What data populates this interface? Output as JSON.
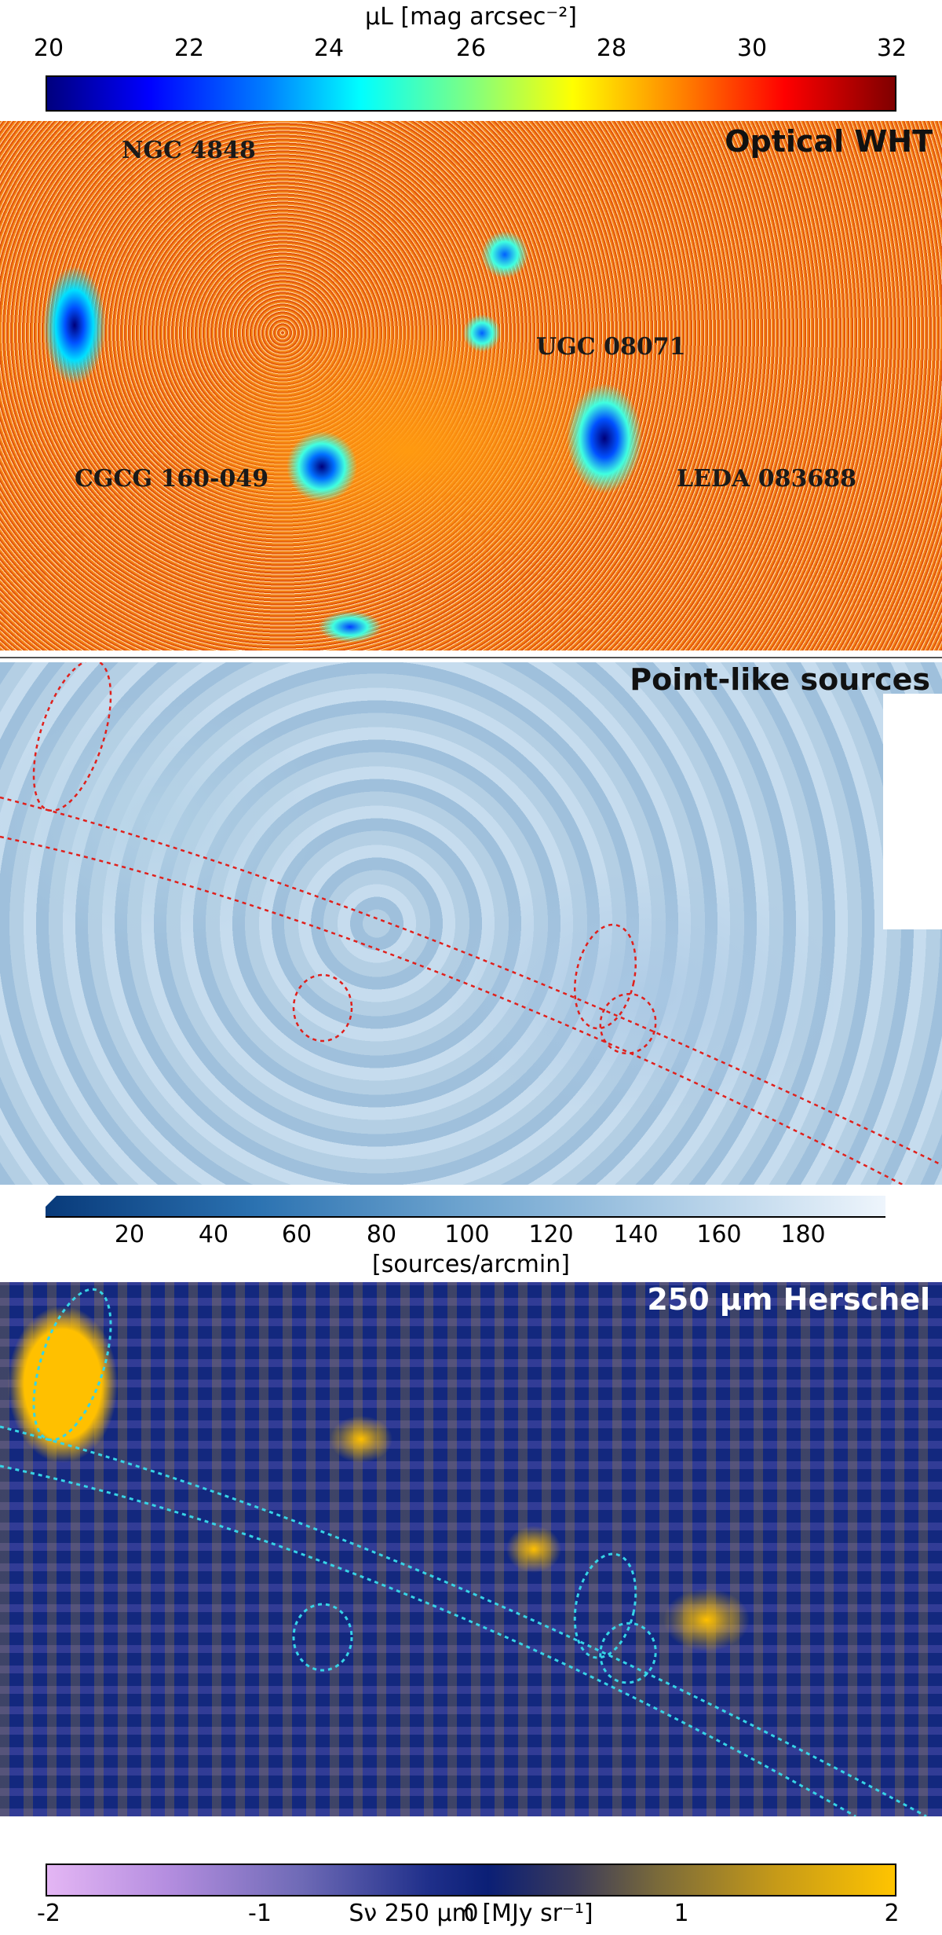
{
  "colorbar_top": {
    "title": "μL [mag arcsec⁻²]",
    "ticks": [
      "20",
      "22",
      "24",
      "26",
      "28",
      "30",
      "32"
    ]
  },
  "panels": {
    "optical": {
      "title": "Optical WHT",
      "labels": {
        "ngc4848": "NGC 4848",
        "ugc08071": "UGC 08071",
        "cgcg160049": "CGCG 160-049",
        "leda083688": "LEDA 083688"
      }
    },
    "point": {
      "title": "Point-like sources"
    },
    "herschel": {
      "title": "250 µm Herschel"
    }
  },
  "colorbar_middle": {
    "label": "[sources/arcmin]",
    "ticks": [
      "20",
      "40",
      "60",
      "80",
      "100",
      "120",
      "140",
      "160",
      "180"
    ]
  },
  "colorbar_bottom": {
    "label": "Sν 250 μm [MJy sr⁻¹]",
    "ticks": [
      "-2",
      "-1",
      "0",
      "1",
      "2"
    ]
  },
  "colors": {
    "overlay_red": "#e0201c",
    "overlay_cyan": "#36d4e6"
  }
}
